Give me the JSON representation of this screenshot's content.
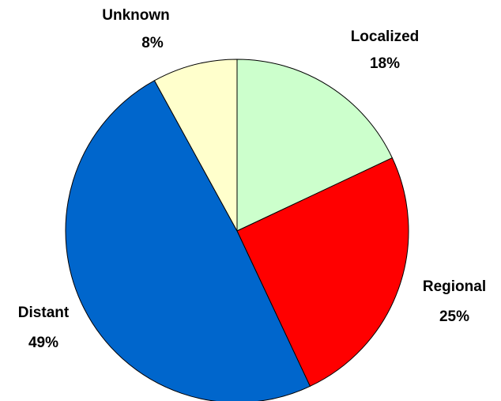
{
  "chart_data": {
    "type": "pie",
    "categories": [
      "Localized",
      "Regional",
      "Distant",
      "Unknown"
    ],
    "values": [
      18,
      25,
      49,
      8
    ],
    "value_labels": [
      "18%",
      "25%",
      "49%",
      "8%"
    ],
    "colors": [
      "#ccffcc",
      "#ff0000",
      "#0066cc",
      "#ffffcc"
    ]
  }
}
